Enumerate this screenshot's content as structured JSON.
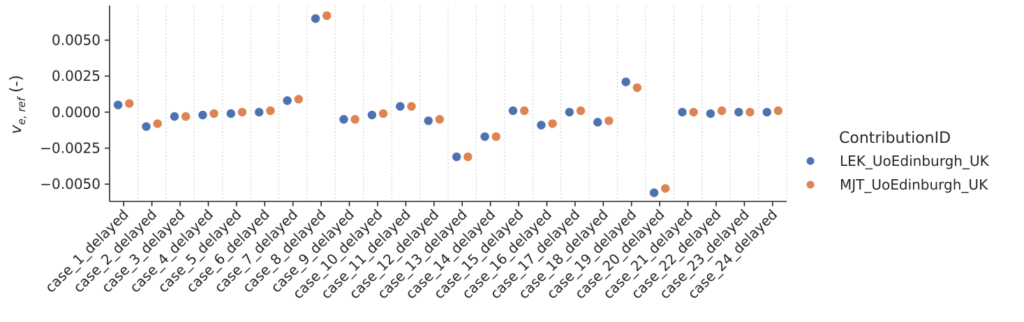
{
  "chart_data": {
    "type": "scatter",
    "ylabel_base": "v",
    "ylabel_sub": "e, ref",
    "ylabel_suffix": " (-)",
    "categories": [
      "case_1_delayed",
      "case_2_delayed",
      "case_3_delayed",
      "case_4_delayed",
      "case_5_delayed",
      "case_6_delayed",
      "case_7_delayed",
      "case_8_delayed",
      "case_9_delayed",
      "case_10_delayed",
      "case_11_delayed",
      "case_12_delayed",
      "case_13_delayed",
      "case_14_delayed",
      "case_15_delayed",
      "case_16_delayed",
      "case_17_delayed",
      "case_18_delayed",
      "case_19_delayed",
      "case_20_delayed",
      "case_21_delayed",
      "case_22_delayed",
      "case_23_delayed",
      "case_24_delayed"
    ],
    "ylim": [
      -0.0062,
      0.0074
    ],
    "yticks": [
      -0.005,
      -0.0025,
      0.0,
      0.0025,
      0.005
    ],
    "ytick_labels": [
      "−0.0050",
      "−0.0025",
      "0.0000",
      "0.0025",
      "0.0050"
    ],
    "grid": "vertical dotted separators between categories",
    "legend": {
      "title": "ContributionID",
      "placement": "right"
    },
    "series": [
      {
        "name": "LEK_UoEdinburgh_UK",
        "color": "#4c72b0",
        "values": [
          0.0005,
          -0.001,
          -0.0003,
          -0.0002,
          -0.0001,
          0.0,
          0.0008,
          0.0065,
          -0.0005,
          -0.0002,
          0.0004,
          -0.0006,
          -0.0031,
          -0.0017,
          0.0001,
          -0.0009,
          0.0,
          -0.0007,
          0.0021,
          -0.0056,
          0.0,
          -0.0001,
          0.0,
          0.0
        ]
      },
      {
        "name": "MJT_UoEdinburgh_UK",
        "color": "#dd8452",
        "values": [
          0.0006,
          -0.0008,
          -0.0003,
          -0.0001,
          0.0,
          0.0001,
          0.0009,
          0.0067,
          -0.0005,
          -0.0001,
          0.0004,
          -0.0005,
          -0.0031,
          -0.0017,
          0.0001,
          -0.0008,
          0.0001,
          -0.0006,
          0.0017,
          -0.0053,
          0.0,
          0.0001,
          0.0,
          0.0001
        ]
      }
    ]
  }
}
